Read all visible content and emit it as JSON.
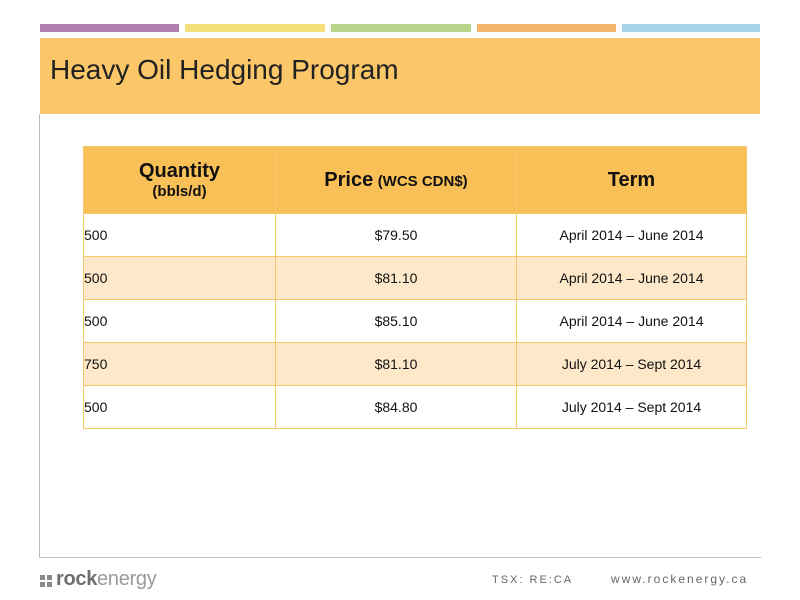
{
  "slide": {
    "title": "Heavy Oil Hedging Program",
    "colors": {
      "title_band": "#fcc768",
      "table_header": "#f8c056",
      "alt_row": "#fde9c9",
      "border": "#f6c86a"
    },
    "stripe_colors": [
      "#b17fb2",
      "#f6e07a",
      "#b9d48b",
      "#f4b46c",
      "#a6d3e8"
    ]
  },
  "table": {
    "headers": {
      "quantity": "Quantity",
      "quantity_unit": "(bbls/d)",
      "price": "Price",
      "price_unit": "(WCS CDN$)",
      "term": "Term"
    },
    "rows": [
      {
        "quantity": "500",
        "price": "$79.50",
        "term": "April 2014 – June 2014"
      },
      {
        "quantity": "500",
        "price": "$81.10",
        "term": "April 2014 – June 2014"
      },
      {
        "quantity": "500",
        "price": "$85.10",
        "term": "April 2014 – June 2014"
      },
      {
        "quantity": "750",
        "price": "$81.10",
        "term": "July 2014 – Sept 2014"
      },
      {
        "quantity": "500",
        "price": "$84.80",
        "term": "July 2014 – Sept 2014"
      }
    ]
  },
  "footer": {
    "logo_rock": "rock",
    "logo_energy": "energy",
    "ticker": "TSX: RE:CA",
    "website": "www.rockenergy.ca"
  }
}
